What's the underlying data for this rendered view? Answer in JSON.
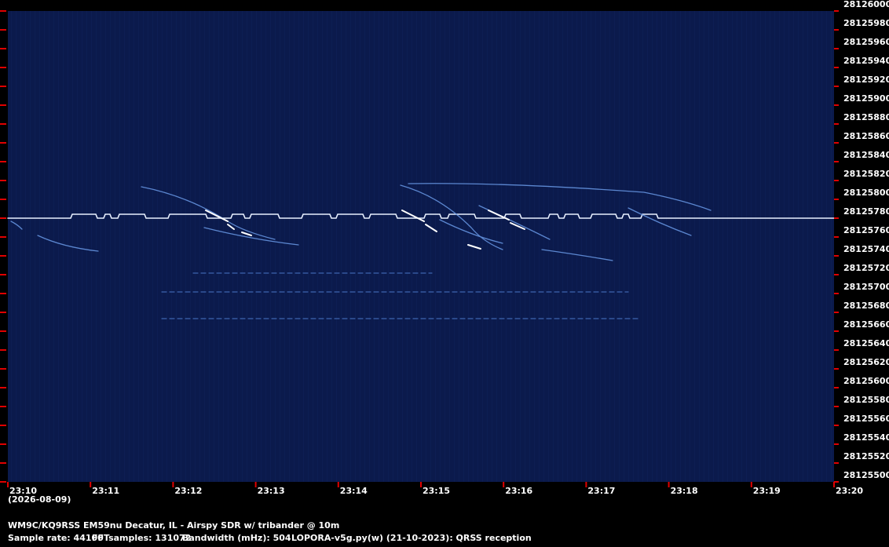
{
  "chart_data": {
    "type": "spectrogram",
    "date": "(2026-08-09)",
    "footer_line1": "WM9C/KQ9RSS EM59nu Decatur, IL - Airspy SDR w/ tribander @ 10m",
    "footer_items": [
      "Sample rate: 44100",
      "FFTsamples: 131072",
      "Bandwidth (mHz): 504",
      "LOPORA-v5g.py(w) (21-10-2023): QRSS reception"
    ],
    "xticks": [
      "23:10",
      "23:11",
      "23:12",
      "23:13",
      "23:14",
      "23:15",
      "23:16",
      "23:17",
      "23:18",
      "23:19",
      "23:20"
    ],
    "ylim": [
      28125500,
      28126000
    ],
    "yticks": [
      28125500,
      28125520,
      28125540,
      28125560,
      28125580,
      28125600,
      28125620,
      28125640,
      28125660,
      28125680,
      28125700,
      28125720,
      28125740,
      28125760,
      28125780,
      28125800,
      28125820,
      28125840,
      28125860,
      28125880,
      28125900,
      28125920,
      28125940,
      28125960,
      28125980,
      28126000
    ],
    "tick_color": "#e00000"
  }
}
